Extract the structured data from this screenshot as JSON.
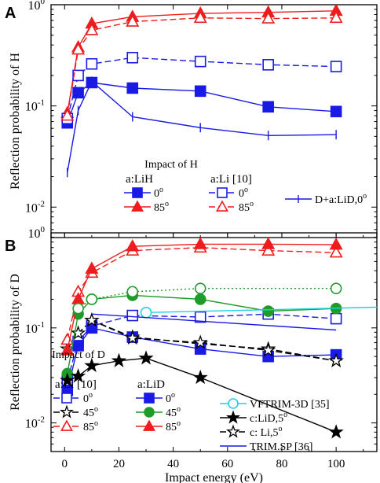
{
  "chart_data": [
    {
      "type": "line",
      "panel_label": "A",
      "ylabel": "Reflection probability of H",
      "ylim": [
        0.005,
        1
      ],
      "y_scale": "log",
      "y_ticks": [
        {
          "v": 0.01,
          "b": "10",
          "e": "-2"
        },
        {
          "v": 0.1,
          "b": "10",
          "e": "-1"
        },
        {
          "v": 1,
          "b": "10",
          "e": "0"
        }
      ],
      "xlim": [
        -5,
        115
      ],
      "x_ticks": [
        0,
        20,
        40,
        60,
        80,
        100
      ],
      "legend_title": "Impact of H",
      "legend_groups": [
        {
          "header": "a:LiH",
          "entries": [
            {
              "label": "0",
              "deg": "o",
              "series": 0
            },
            {
              "label": "85",
              "deg": "o",
              "series": 1
            }
          ]
        },
        {
          "header": "a:Li [10]",
          "entries": [
            {
              "label": "0",
              "deg": "o",
              "series": 2
            },
            {
              "label": "85",
              "deg": "o",
              "series": 3
            }
          ]
        },
        {
          "header": "",
          "entries": [
            {
              "label": "D+a:LiD,0",
              "deg": "o",
              "series": 4
            }
          ]
        }
      ],
      "series": [
        {
          "name": "a:LiH 0°",
          "color": "#1a1ae6",
          "dash": "solid",
          "marker": "square",
          "filled": true,
          "x": [
            1,
            5,
            10,
            25,
            50,
            75,
            100
          ],
          "y": [
            0.068,
            0.135,
            0.17,
            0.15,
            0.14,
            0.098,
            0.088
          ]
        },
        {
          "name": "a:LiH 85°",
          "color": "#ee1c1c",
          "dash": "solid",
          "marker": "triangle",
          "filled": true,
          "x": [
            1,
            5,
            10,
            25,
            50,
            75,
            100
          ],
          "y": [
            0.085,
            0.38,
            0.65,
            0.76,
            0.82,
            0.84,
            0.87
          ]
        },
        {
          "name": "a:Li [10] 0°",
          "color": "#1a1ae6",
          "dash": "dashed",
          "marker": "square",
          "filled": false,
          "x": [
            1,
            5,
            10,
            25,
            50,
            75,
            100
          ],
          "y": [
            0.075,
            0.2,
            0.26,
            0.3,
            0.275,
            0.255,
            0.245
          ]
        },
        {
          "name": "a:Li [10] 85°",
          "color": "#ee1c1c",
          "dash": "dashed",
          "marker": "triangle",
          "filled": false,
          "x": [
            1,
            5,
            10,
            25,
            50,
            75,
            100
          ],
          "y": [
            0.08,
            0.36,
            0.56,
            0.68,
            0.74,
            0.73,
            0.74
          ]
        },
        {
          "name": "D+a:LiD,0°",
          "color": "#1a1ae6",
          "dash": "solid",
          "marker": "bar",
          "filled": false,
          "x": [
            1,
            5,
            10,
            25,
            50,
            75,
            100
          ],
          "y": [
            0.022,
            0.09,
            0.175,
            0.078,
            0.061,
            0.051,
            0.052
          ]
        }
      ]
    },
    {
      "type": "line",
      "panel_label": "B",
      "ylabel": "Reflection probability of D",
      "xlabel": "Impact energy (eV)",
      "ylim": [
        0.005,
        1
      ],
      "y_scale": "log",
      "y_ticks": [
        {
          "v": 0.01,
          "b": "10",
          "e": "-2"
        },
        {
          "v": 0.1,
          "b": "10",
          "e": "-1"
        },
        {
          "v": 1,
          "b": "10",
          "e": "0"
        }
      ],
      "xlim": [
        -5,
        115
      ],
      "x_ticks": [
        0,
        20,
        40,
        60,
        80,
        100
      ],
      "legend_title": "Impact of D",
      "legend_groups": [
        {
          "header": "a:Li [10]",
          "entries": [
            {
              "label": "0",
              "deg": "o",
              "series": 0
            },
            {
              "label": "45",
              "deg": "o",
              "series": 1
            },
            {
              "label": "85",
              "deg": "o",
              "series": 2
            }
          ]
        },
        {
          "header": "a:LiD",
          "entries": [
            {
              "label": "0",
              "deg": "o",
              "series": 3
            },
            {
              "label": "45",
              "deg": "o",
              "series": 4
            },
            {
              "label": "85",
              "deg": "o",
              "series": 5
            }
          ]
        },
        {
          "header": "",
          "entries": [
            {
              "label": "VFTRIM-3D [35]",
              "deg": "",
              "series": 6
            },
            {
              "label": "c:LiD,5",
              "deg": "o",
              "series": 7
            },
            {
              "label": "c: Li,5",
              "deg": "o",
              "series": 8
            },
            {
              "label": "TRIM.SP [36]",
              "deg": "",
              "series": 9
            }
          ]
        }
      ],
      "series": [
        {
          "name": "a:Li [10] 0°",
          "color": "#1a1ae6",
          "dash": "dashed",
          "marker": "square",
          "filled": false,
          "x": [
            1,
            5,
            10,
            25,
            50,
            75,
            100
          ],
          "y": [
            0.028,
            0.072,
            0.105,
            0.135,
            0.13,
            0.14,
            0.125
          ]
        },
        {
          "name": "a:Li [10] 45°",
          "color": "#000000",
          "dash": "dashed",
          "marker": "star",
          "filled": false,
          "x": [
            1,
            5,
            10,
            25,
            50,
            75,
            100
          ],
          "y": [
            0.06,
            0.088,
            0.12,
            0.08,
            0.068,
            0.06,
            0.045
          ]
        },
        {
          "name": "a:Li [10] 85°",
          "color": "#ee1c1c",
          "dash": "dashed",
          "marker": "triangle",
          "filled": false,
          "x": [
            1,
            5,
            10,
            25,
            50,
            75,
            100
          ],
          "y": [
            0.075,
            0.24,
            0.38,
            0.65,
            0.7,
            0.65,
            0.62
          ]
        },
        {
          "name": "a:LiD 0°",
          "color": "#1a1ae6",
          "dash": "solid",
          "marker": "square",
          "filled": true,
          "x": [
            1,
            5,
            10,
            25,
            50,
            75,
            100
          ],
          "y": [
            0.022,
            0.065,
            0.1,
            0.08,
            0.06,
            0.05,
            0.052
          ]
        },
        {
          "name": "a:LiD 45°",
          "color": "#1f9b2a",
          "dash": "solid",
          "marker": "circle",
          "filled": true,
          "x": [
            1,
            5,
            10,
            25,
            50,
            75,
            100
          ],
          "y": [
            0.033,
            0.14,
            0.2,
            0.22,
            0.2,
            0.15,
            0.16
          ]
        },
        {
          "name": "a:LiD 85°",
          "color": "#ee1c1c",
          "dash": "solid",
          "marker": "triangle",
          "filled": true,
          "x": [
            1,
            5,
            10,
            25,
            50,
            75,
            100
          ],
          "y": [
            0.058,
            0.2,
            0.42,
            0.72,
            0.76,
            0.76,
            0.75
          ]
        },
        {
          "name": "VFTRIM-3D [35]",
          "color": "#1fd0e0",
          "dash": "solid",
          "marker": "circle",
          "filled": false,
          "x": [
            30,
            115
          ],
          "y": [
            0.145,
            0.165
          ]
        },
        {
          "name": "c:LiD,5°",
          "color": "#000000",
          "dash": "solid",
          "marker": "star",
          "filled": true,
          "x": [
            1,
            5,
            10,
            20,
            30,
            50,
            100
          ],
          "y": [
            0.028,
            0.031,
            0.04,
            0.045,
            0.048,
            0.03,
            0.008
          ]
        },
        {
          "name": "c: Li,5°",
          "color": "#000000",
          "dash": "dashed",
          "marker": "star",
          "filled": false,
          "x": [
            10,
            25,
            50,
            75,
            100
          ],
          "y": [
            0.12,
            0.078,
            0.07,
            0.058,
            0.045
          ]
        },
        {
          "name": "TRIM.SP [36]",
          "color": "#1a1ae6",
          "dash": "solid",
          "marker": "none",
          "filled": false,
          "x": [
            10,
            100
          ],
          "y": [
            0.14,
            0.095
          ]
        },
        {
          "name": "",
          "color": "#1f9b2a",
          "dash": "dotted",
          "marker": "circle",
          "filled": false,
          "x": [
            5,
            10,
            25,
            50,
            100
          ],
          "y": [
            0.16,
            0.2,
            0.24,
            0.26,
            0.26
          ]
        }
      ]
    }
  ]
}
